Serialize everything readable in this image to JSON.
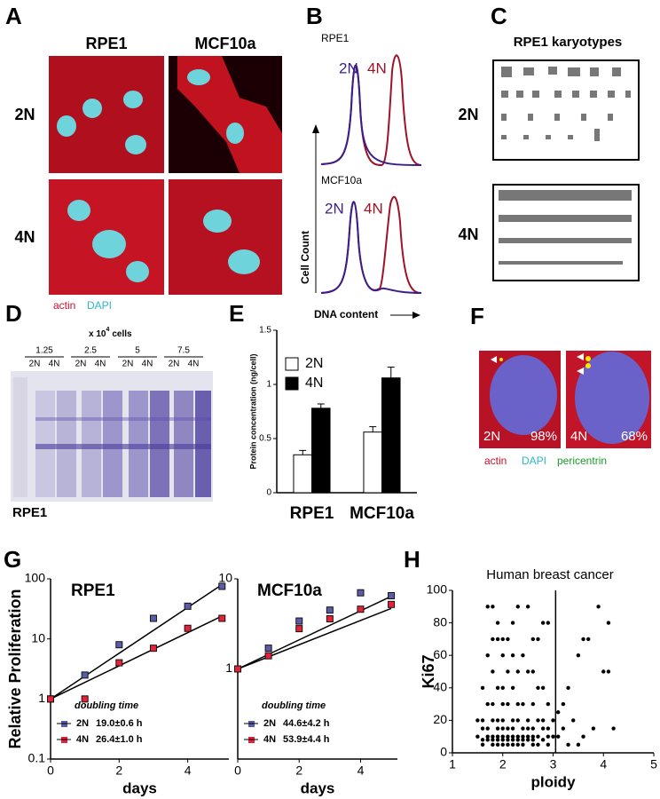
{
  "panel_letters": [
    "A",
    "B",
    "C",
    "D",
    "E",
    "F",
    "G",
    "H"
  ],
  "panel_a": {
    "columns": [
      "RPE1",
      "MCF10a"
    ],
    "rows": [
      "2N",
      "4N"
    ],
    "legend": [
      "actin",
      "DAPI"
    ]
  },
  "panel_b": {
    "plots": [
      {
        "name": "RPE1",
        "peaks": [
          "2N",
          "4N"
        ]
      },
      {
        "name": "MCF10a",
        "peaks": [
          "2N",
          "4N"
        ]
      }
    ],
    "y_label": "Cell Count",
    "x_label": "DNA content"
  },
  "panel_c": {
    "title": "RPE1 karyotypes",
    "rows": [
      "2N",
      "4N"
    ]
  },
  "panel_d": {
    "header": [
      "x 10",
      "4",
      "cells"
    ],
    "amounts": [
      "1.25",
      "2.5",
      "5",
      "7.5"
    ],
    "lanes": [
      "2N",
      "4N"
    ],
    "label": "RPE1"
  },
  "panel_f": {
    "images": [
      {
        "ploidy": "2N",
        "percent": "98%"
      },
      {
        "ploidy": "4N",
        "percent": "68%"
      }
    ],
    "legend": [
      "actin",
      "DAPI",
      "pericentrin"
    ]
  },
  "chart_data": [
    {
      "type": "bar",
      "ylabel": "Protein concentration (ng/cell)",
      "categories": [
        "RPE1",
        "MCF10a"
      ],
      "series": [
        {
          "name": "2N",
          "color": "#ffffff",
          "values": [
            0.35,
            0.56
          ],
          "errors": [
            0.04,
            0.05
          ]
        },
        {
          "name": "4N",
          "color": "#000000",
          "values": [
            0.78,
            1.06
          ],
          "errors": [
            0.04,
            0.1
          ]
        }
      ],
      "ylim": [
        0,
        1.5
      ],
      "yticks": [
        0,
        0.5,
        1,
        1.5
      ]
    },
    {
      "type": "line",
      "title": "RPE1",
      "ylabel": "Relative Proliferation",
      "xlabel": "days",
      "log_y": true,
      "legend_title": "doubling time",
      "series": [
        {
          "name": "2N",
          "color": "#5b5ba8",
          "doubling": "19.0±0.6 h",
          "x": [
            0,
            1,
            2,
            3,
            4,
            5
          ],
          "values": [
            1,
            2.5,
            8,
            22,
            35,
            75
          ]
        },
        {
          "name": "4N",
          "color": "#e8213a",
          "doubling": "26.4±1.0 h",
          "x": [
            0,
            1,
            2,
            3,
            4,
            5
          ],
          "values": [
            1,
            1,
            4,
            7,
            15,
            22
          ]
        }
      ],
      "fits": [
        {
          "x": [
            0,
            5
          ],
          "values": [
            1,
            80
          ]
        },
        {
          "x": [
            0,
            5
          ],
          "values": [
            1,
            24
          ]
        }
      ],
      "xlim": [
        0,
        5.2
      ],
      "xticks": [
        0,
        2,
        4
      ],
      "ylim": [
        0.1,
        100
      ],
      "yticks": [
        0.1,
        1,
        10,
        100
      ]
    },
    {
      "type": "line",
      "title": "MCF10a",
      "xlabel": "days",
      "log_y": true,
      "legend_title": "doubling time",
      "series": [
        {
          "name": "2N",
          "color": "#5b5ba8",
          "doubling": "44.6±4.2 h",
          "x": [
            0,
            1,
            2,
            3,
            4,
            5
          ],
          "values": [
            1,
            1.7,
            3.4,
            4.5,
            7,
            6.5
          ]
        },
        {
          "name": "4N",
          "color": "#e8213a",
          "doubling": "53.9±4.4 h",
          "x": [
            0,
            1,
            2,
            3,
            4,
            5
          ],
          "values": [
            1,
            1.4,
            2.8,
            3.6,
            4.6,
            5.2
          ]
        }
      ],
      "fits": [
        {
          "x": [
            0,
            5
          ],
          "values": [
            1,
            6.4
          ]
        },
        {
          "x": [
            0,
            5
          ],
          "values": [
            1,
            4.7
          ]
        }
      ],
      "xlim": [
        0,
        5.2
      ],
      "xticks": [
        0,
        2,
        4
      ],
      "ylim": [
        0.1,
        10
      ],
      "yticks": [
        1,
        10
      ]
    },
    {
      "type": "scatter",
      "title": "Human breast cancer",
      "ylabel": "Ki67",
      "xlabel": "ploidy",
      "color": "#000000",
      "x": [
        1.7,
        1.8,
        2.3,
        2.5,
        1.9,
        2.2,
        2.8,
        2.9,
        1.8,
        1.9,
        2.0,
        2.1,
        2.6,
        2.7,
        1.7,
        2.0,
        2.2,
        2.4,
        1.8,
        2.1,
        2.3,
        2.5,
        2.6,
        1.6,
        1.9,
        2.0,
        2.2,
        2.7,
        2.8,
        1.7,
        1.8,
        2.0,
        2.1,
        2.3,
        2.4,
        2.6,
        2.9,
        1.5,
        1.6,
        1.8,
        1.9,
        2.0,
        2.2,
        2.3,
        2.5,
        2.7,
        2.8,
        3.0,
        1.6,
        1.7,
        1.9,
        2.0,
        2.1,
        2.2,
        2.4,
        2.5,
        2.6,
        2.8,
        2.9,
        1.5,
        1.7,
        1.8,
        1.9,
        2.0,
        2.1,
        2.2,
        2.3,
        2.4,
        2.5,
        2.6,
        2.7,
        2.9,
        3.0,
        1.6,
        1.7,
        1.8,
        1.9,
        2.0,
        2.1,
        2.2,
        2.3,
        2.4,
        2.5,
        2.6,
        2.8,
        1.6,
        1.8,
        1.9,
        2.0,
        2.1,
        2.2,
        2.3,
        2.4,
        2.6,
        2.7,
        2.9,
        3.9,
        4.1,
        4.2,
        3.6,
        3.7,
        4.0,
        4.1,
        3.5,
        3.3,
        3.2,
        3.4,
        3.6,
        3.8,
        3.3,
        3.5,
        3.1,
        3.2,
        3.1
      ],
      "values": [
        90,
        90,
        90,
        90,
        80,
        80,
        80,
        80,
        70,
        70,
        70,
        70,
        70,
        70,
        60,
        60,
        60,
        60,
        50,
        50,
        50,
        50,
        50,
        40,
        40,
        40,
        40,
        40,
        40,
        30,
        30,
        30,
        30,
        30,
        30,
        30,
        30,
        20,
        20,
        20,
        20,
        20,
        20,
        20,
        20,
        20,
        20,
        20,
        15,
        15,
        15,
        15,
        15,
        15,
        15,
        15,
        15,
        15,
        15,
        10,
        10,
        10,
        10,
        10,
        10,
        10,
        10,
        10,
        10,
        10,
        10,
        10,
        10,
        8,
        8,
        8,
        8,
        8,
        8,
        8,
        8,
        8,
        8,
        8,
        8,
        5,
        5,
        5,
        5,
        5,
        5,
        5,
        5,
        5,
        5,
        5,
        90,
        80,
        15,
        70,
        70,
        50,
        50,
        60,
        40,
        30,
        20,
        10,
        15,
        5,
        5,
        25,
        15,
        10
      ],
      "vline": 3.05,
      "xlim": [
        1,
        5
      ],
      "xticks": [
        1,
        2,
        3,
        4,
        5
      ],
      "ylim": [
        0,
        100
      ],
      "yticks": [
        0,
        20,
        40,
        60,
        80,
        100
      ]
    }
  ]
}
